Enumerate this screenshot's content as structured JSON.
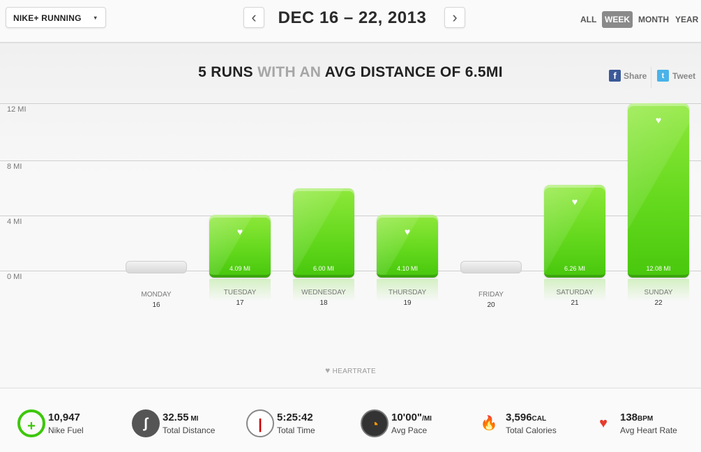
{
  "header": {
    "app_selector": "NIKE+ RUNNING",
    "caret": "▾",
    "prev": "‹",
    "next": "›",
    "date_range": "DEC 16 – 22, 2013",
    "periods": [
      "ALL",
      "WEEK",
      "MONTH",
      "YEAR"
    ],
    "active_period": "WEEK"
  },
  "summary": {
    "runs": "5 RUNS",
    "with_an": " WITH AN ",
    "avg": "AVG DISTANCE OF 6.5MI"
  },
  "share": {
    "facebook_glyph": "f",
    "facebook": "Share",
    "twitter_glyph": "t",
    "twitter": "Tweet"
  },
  "colors": {
    "bar": "#63d81c",
    "accent": "#3dc70a"
  },
  "chart_data": {
    "type": "bar",
    "categories": [
      "MONDAY",
      "TUESDAY",
      "WEDNESDAY",
      "THURSDAY",
      "FRIDAY",
      "SATURDAY",
      "SUNDAY"
    ],
    "dates": [
      "16",
      "17",
      "18",
      "19",
      "20",
      "21",
      "22"
    ],
    "values": [
      0,
      4.09,
      6.0,
      4.1,
      0,
      6.26,
      12.08
    ],
    "value_labels": [
      "",
      "4.09 MI",
      "6.00 MI",
      "4.10 MI",
      "",
      "6.26 MI",
      "12.08 MI"
    ],
    "heartrate": [
      false,
      true,
      false,
      true,
      false,
      true,
      true
    ],
    "yticks": [
      "0 MI",
      "4 MI",
      "8 MI",
      "12 MI"
    ],
    "ylim": [
      0,
      12
    ],
    "legend": "HEARTRATE",
    "legend_glyph": "♥"
  },
  "stats": [
    {
      "icon": "fuel-icon",
      "glyph": "+",
      "value": "10,947",
      "unit": "",
      "label": "Nike Fuel"
    },
    {
      "icon": "road-icon",
      "glyph": "∫",
      "value": "32.55",
      "unit": " MI",
      "label": "Total Distance"
    },
    {
      "icon": "stopwatch-icon",
      "glyph": "|",
      "value": "5:25:42",
      "unit": "",
      "label": "Total Time"
    },
    {
      "icon": "speedometer-icon",
      "glyph": "◔",
      "value": "10'00\"",
      "unit": "/MI",
      "label": "Avg Pace"
    },
    {
      "icon": "flame-icon",
      "glyph": "🔥",
      "value": "3,596",
      "unit": "CAL",
      "label": "Total Calories"
    },
    {
      "icon": "heart-icon",
      "glyph": "♥",
      "value": "138",
      "unit": "BPM",
      "label": "Avg Heart Rate"
    }
  ]
}
